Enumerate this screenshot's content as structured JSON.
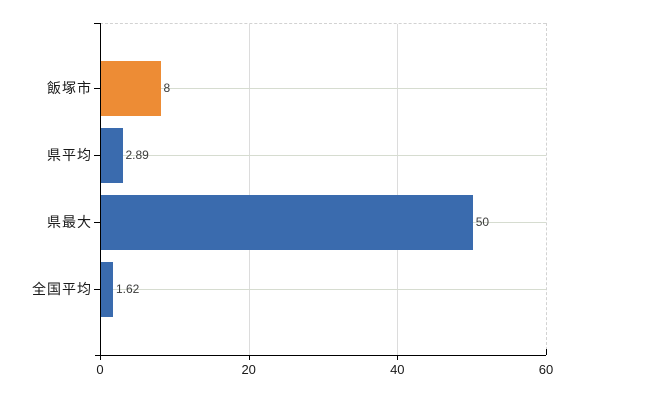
{
  "chart_data": {
    "type": "bar",
    "orientation": "horizontal",
    "title": "",
    "xlabel": "",
    "ylabel": "",
    "categories": [
      "飯塚市",
      "県平均",
      "県最大",
      "全国平均"
    ],
    "values": [
      8,
      2.89,
      50,
      1.62
    ],
    "value_labels": [
      "8",
      "2.89",
      "50",
      "1.62"
    ],
    "bar_colors": [
      "#ED8C35",
      "#3A6BAE",
      "#3A6BAE",
      "#3A6BAE"
    ],
    "xlim": [
      0,
      60
    ],
    "xticks": [
      0,
      20,
      40,
      60
    ],
    "xtick_labels": [
      "0",
      "20",
      "40",
      "60"
    ],
    "legend": "none",
    "grid": {
      "vertical_gridlines_at": [
        20,
        40
      ],
      "horizontal_row_lines": true,
      "top_right_border": "dashed"
    }
  },
  "colors": {
    "background": "#FFFFFF",
    "bar_orange": "#ED8C35",
    "bar_blue": "#3A6BAE",
    "axis": "#000000",
    "gridline_vertical": "#DCDCDC",
    "gridline_horizontal": "#D6DCD0",
    "dashed_border": "#D2D2D2",
    "label_text": "#1A1A1A",
    "value_text": "#3D3D3D"
  }
}
